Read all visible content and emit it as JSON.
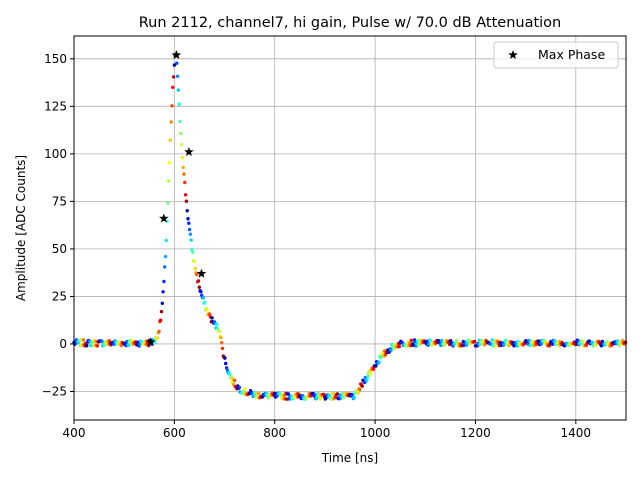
{
  "chart_data": {
    "type": "scatter",
    "title": "Run 2112, channel7, hi gain, Pulse w/ 70.0 dB Attenuation",
    "xlabel": "Time [ns]",
    "ylabel": "Amplitude [ADC Counts]",
    "xlim": [
      400,
      1500
    ],
    "ylim": [
      -40,
      162
    ],
    "xticks": [
      400,
      600,
      800,
      1000,
      1200,
      1400
    ],
    "yticks": [
      -25,
      0,
      25,
      50,
      75,
      100,
      125,
      150
    ],
    "grid": true,
    "legend": {
      "position": "top-right",
      "entries": [
        "Max Phase"
      ]
    },
    "colormap": "jet",
    "pulse_model": {
      "baseline": 0.5,
      "peak_time": 604,
      "peak_amplitude": 152,
      "rise_sigma": 14,
      "decay_tau": 28,
      "undershoot_level": -28,
      "undershoot_start": 690,
      "undershoot_recovery_start": 960,
      "undershoot_recovery_end": 1060
    },
    "series": [
      {
        "name": "Max Phase",
        "marker": "star",
        "x": [
          553,
          579,
          604,
          629,
          654
        ],
        "y": [
          1,
          66,
          152,
          101,
          37
        ]
      }
    ]
  }
}
